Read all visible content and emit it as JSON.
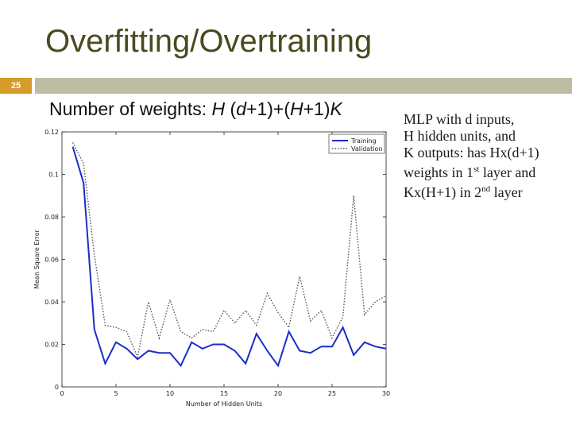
{
  "slide": {
    "title": "Overfitting/Overtraining",
    "number": "25",
    "subtitle_prefix": "Number of weights: ",
    "subtitle_H1": "H",
    "subtitle_mid1": " (",
    "subtitle_d": "d",
    "subtitle_mid2": "+1)+(",
    "subtitle_H2": "H",
    "subtitle_mid3": "+1)",
    "subtitle_K": "K",
    "note": {
      "line1": "MLP with d inputs,",
      "line2": "H hidden units, and",
      "line3": "K outputs: has Hx(d+1)",
      "line4_pre": "weights in 1",
      "line4_sup": "st",
      "line4_post": " layer and",
      "line5_pre": "Kx(H+1) in 2",
      "line5_sup": "nd",
      "line5_post": " layer"
    }
  },
  "chart_data": {
    "type": "line",
    "xlabel": "Number of Hidden Units",
    "ylabel": "Mean Square Error",
    "xlim": [
      0,
      30
    ],
    "ylim": [
      0,
      0.12
    ],
    "xticks": [
      0,
      5,
      10,
      15,
      20,
      25,
      30
    ],
    "xtick_labels": [
      "0",
      "5",
      "10",
      "15",
      "20",
      "25",
      "30"
    ],
    "yticks": [
      0,
      0.02,
      0.04,
      0.06,
      0.08,
      0.1,
      0.12
    ],
    "ytick_labels": [
      "0",
      "0.02",
      "0.04",
      "0.06",
      "0.08",
      "0.1",
      "0.12"
    ],
    "legend_position": "top-right",
    "x": [
      1,
      2,
      3,
      4,
      5,
      6,
      7,
      8,
      9,
      10,
      11,
      12,
      13,
      14,
      15,
      16,
      17,
      18,
      19,
      20,
      21,
      22,
      23,
      24,
      25,
      26,
      27,
      28,
      29,
      30
    ],
    "series": [
      {
        "name": "Training",
        "color": "#1a2ec8",
        "style": "solid",
        "values": [
          0.113,
          0.096,
          0.027,
          0.011,
          0.021,
          0.018,
          0.013,
          0.017,
          0.016,
          0.016,
          0.01,
          0.021,
          0.018,
          0.02,
          0.02,
          0.017,
          0.011,
          0.025,
          0.017,
          0.01,
          0.026,
          0.017,
          0.016,
          0.019,
          0.019,
          0.028,
          0.015,
          0.021,
          0.019,
          0.018
        ]
      },
      {
        "name": "Validation",
        "color": "#555555",
        "style": "dotted",
        "values": [
          0.115,
          0.105,
          0.062,
          0.029,
          0.028,
          0.026,
          0.014,
          0.04,
          0.023,
          0.041,
          0.026,
          0.023,
          0.027,
          0.026,
          0.036,
          0.03,
          0.036,
          0.029,
          0.044,
          0.035,
          0.028,
          0.052,
          0.031,
          0.036,
          0.023,
          0.033,
          0.09,
          0.034,
          0.04,
          0.043
        ]
      }
    ]
  }
}
